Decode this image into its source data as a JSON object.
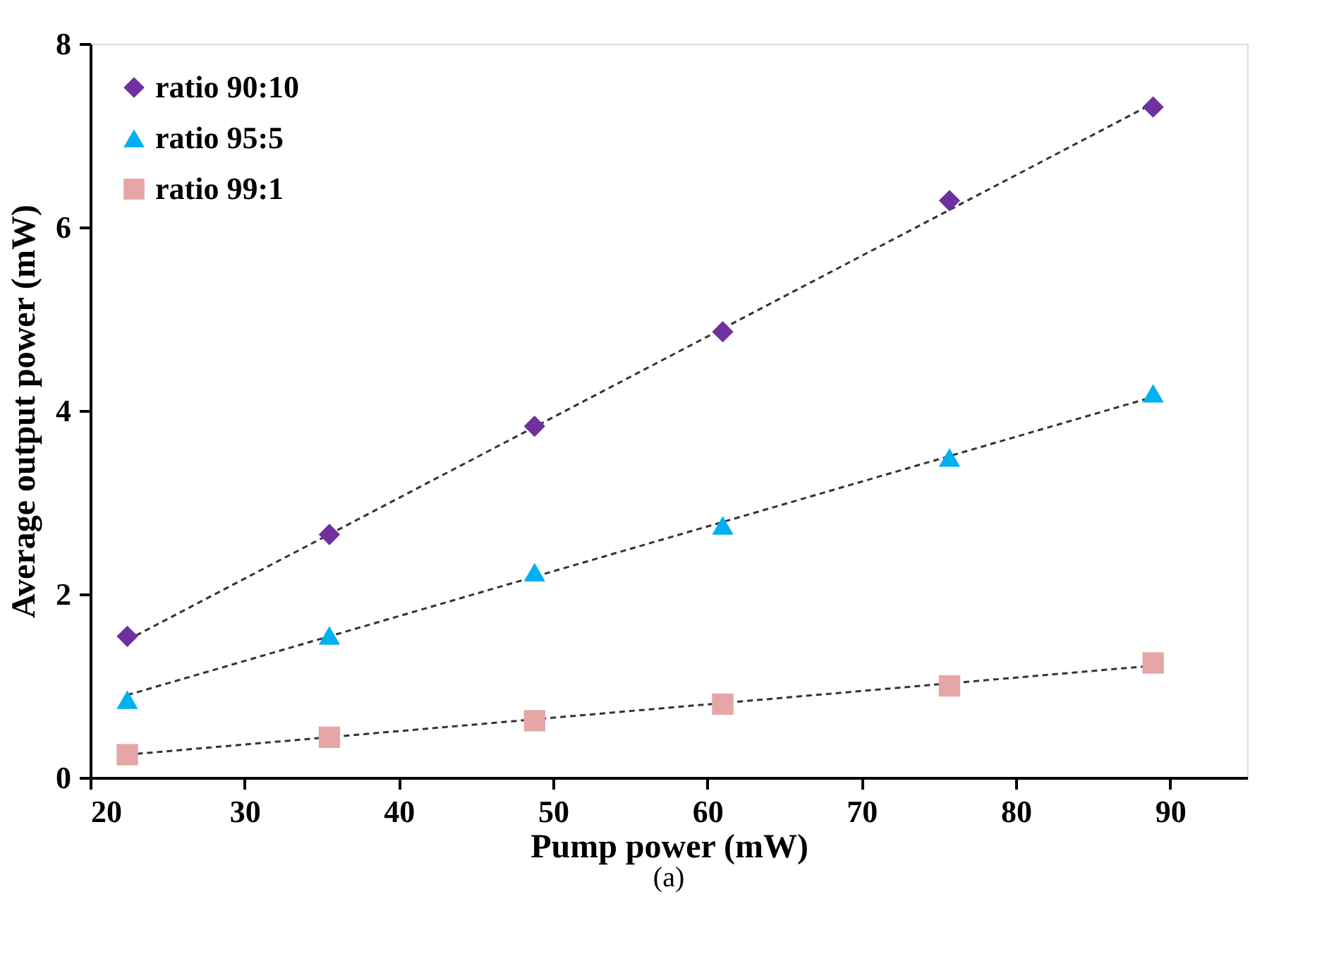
{
  "chart_data": {
    "type": "scatter",
    "xlabel": "Pump power (mW)",
    "ylabel": "Average output power (mW)",
    "annotations": [
      "(a)"
    ],
    "xlim": [
      20,
      95
    ],
    "xticks": [
      20,
      30,
      40,
      50,
      60,
      70,
      80,
      90
    ],
    "ylim": [
      0,
      8
    ],
    "yticks": [
      0,
      2,
      4,
      6,
      8
    ],
    "grid": false,
    "legend": "top left",
    "series": [
      {
        "name": "ratio 90:10",
        "color": "#7030a0",
        "marker": "diamond",
        "x": [
          22.4,
          35.5,
          48.8,
          61.0,
          75.7,
          88.9
        ],
        "values": [
          1.54,
          2.65,
          3.83,
          4.86,
          6.29,
          7.31
        ]
      },
      {
        "name": "ratio 95:5",
        "color": "#00b0f0",
        "marker": "triangle",
        "x": [
          22.4,
          35.5,
          48.8,
          61.0,
          75.7,
          88.9
        ],
        "values": [
          0.85,
          1.55,
          2.24,
          2.75,
          3.49,
          4.19
        ]
      },
      {
        "name": "ratio 99:1",
        "color": "#e6a6a6",
        "marker": "square",
        "x": [
          22.4,
          35.5,
          48.8,
          61.0,
          75.7,
          88.9
        ],
        "values": [
          0.25,
          0.44,
          0.62,
          0.8,
          1.0,
          1.25
        ]
      },
      {
        "type": "line",
        "color": "#333333",
        "line_style": "dashed",
        "marker": "none",
        "x": [
          22.4,
          88.9
        ],
        "values": [
          1.5,
          7.35
        ]
      },
      {
        "type": "line",
        "color": "#333333",
        "line_style": "dashed",
        "marker": "none",
        "x": [
          22.4,
          88.9
        ],
        "values": [
          0.9,
          4.15
        ]
      },
      {
        "type": "line",
        "color": "#333333",
        "line_style": "dashed",
        "marker": "none",
        "x": [
          22.4,
          88.9
        ],
        "values": [
          0.25,
          1.22
        ]
      }
    ]
  }
}
